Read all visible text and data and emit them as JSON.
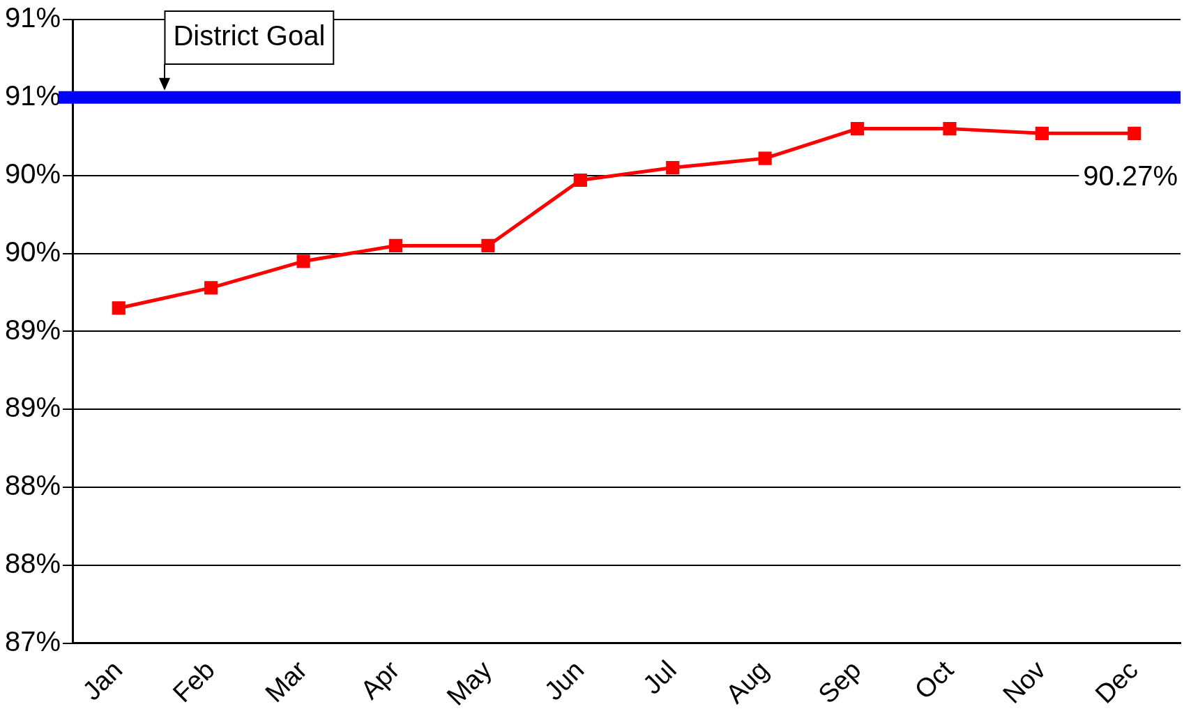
{
  "chart_data": {
    "type": "line",
    "categories": [
      "Jan",
      "Feb",
      "Mar",
      "Apr",
      "May",
      "Jun",
      "Jul",
      "Aug",
      "Sep",
      "Oct",
      "Nov",
      "Dec"
    ],
    "series": [
      {
        "color": "#ff0000",
        "values": [
          89.15,
          89.28,
          89.45,
          89.55,
          89.55,
          89.97,
          90.05,
          90.11,
          90.3,
          90.3,
          90.27,
          90.27
        ],
        "value_labels": [
          null,
          null,
          null,
          null,
          null,
          null,
          null,
          null,
          null,
          null,
          null,
          "90.27%"
        ]
      }
    ],
    "ylim": [
      87,
      91
    ],
    "yticks": [
      {
        "value": 87,
        "label": "87%"
      },
      {
        "value": 87.5,
        "label": "88%"
      },
      {
        "value": 88,
        "label": "88%"
      },
      {
        "value": 88.5,
        "label": "89%"
      },
      {
        "value": 89,
        "label": "89%"
      },
      {
        "value": 89.5,
        "label": "90%"
      },
      {
        "value": 90,
        "label": "90%"
      },
      {
        "value": 90.5,
        "label": "91%"
      },
      {
        "value": 91,
        "label": "91%"
      }
    ],
    "ref_lines": [
      {
        "axis": "y",
        "value": 90.5,
        "label": "District Goal",
        "color": "#0000ff"
      }
    ],
    "grid": "y",
    "legend": false,
    "marker": "square",
    "line_style": "solid"
  }
}
